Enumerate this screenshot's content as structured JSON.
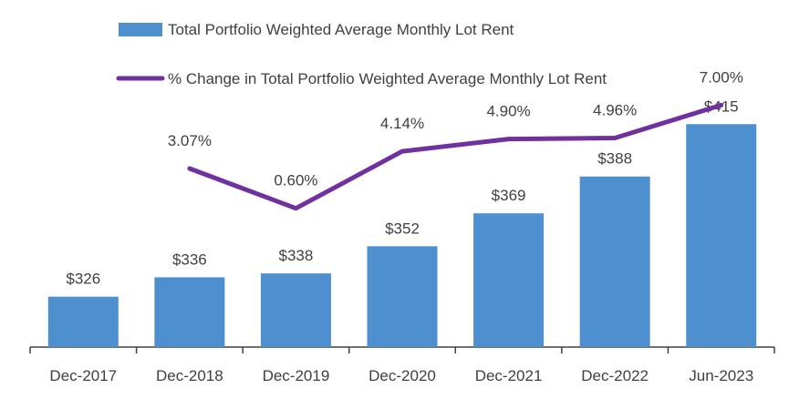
{
  "chart_data": {
    "type": "bar+line",
    "categories": [
      "Dec-2017",
      "Dec-2018",
      "Dec-2019",
      "Dec-2020",
      "Dec-2021",
      "Dec-2022",
      "Jun-2023"
    ],
    "series": [
      {
        "name": "Total Portfolio Weighted Average Monthly Lot Rent",
        "type": "bar",
        "values": [
          326,
          336,
          338,
          352,
          369,
          388,
          415
        ],
        "labels": [
          "$326",
          "$336",
          "$338",
          "$352",
          "$369",
          "$388",
          "$415"
        ],
        "color": "#4e8fd0"
      },
      {
        "name": "% Change in Total Portfolio Weighted Average Monthly Lot Rent",
        "type": "line",
        "values": [
          null,
          3.07,
          0.6,
          4.14,
          4.9,
          4.96,
          7.0
        ],
        "labels": [
          "",
          "3.07%",
          "0.60%",
          "4.14%",
          "4.90%",
          "4.96%",
          "7.00%"
        ],
        "color": "#7030a0"
      }
    ],
    "legend": {
      "position": "top-left",
      "entries": [
        "Total Portfolio Weighted Average Monthly Lot Rent",
        "% Change in Total Portfolio Weighted Average Monthly Lot Rent"
      ]
    },
    "ylim_bar": [
      300,
      425
    ],
    "ylim_line": [
      -8,
      9
    ],
    "grid": false,
    "title": "",
    "xlabel": "",
    "ylabel": ""
  }
}
